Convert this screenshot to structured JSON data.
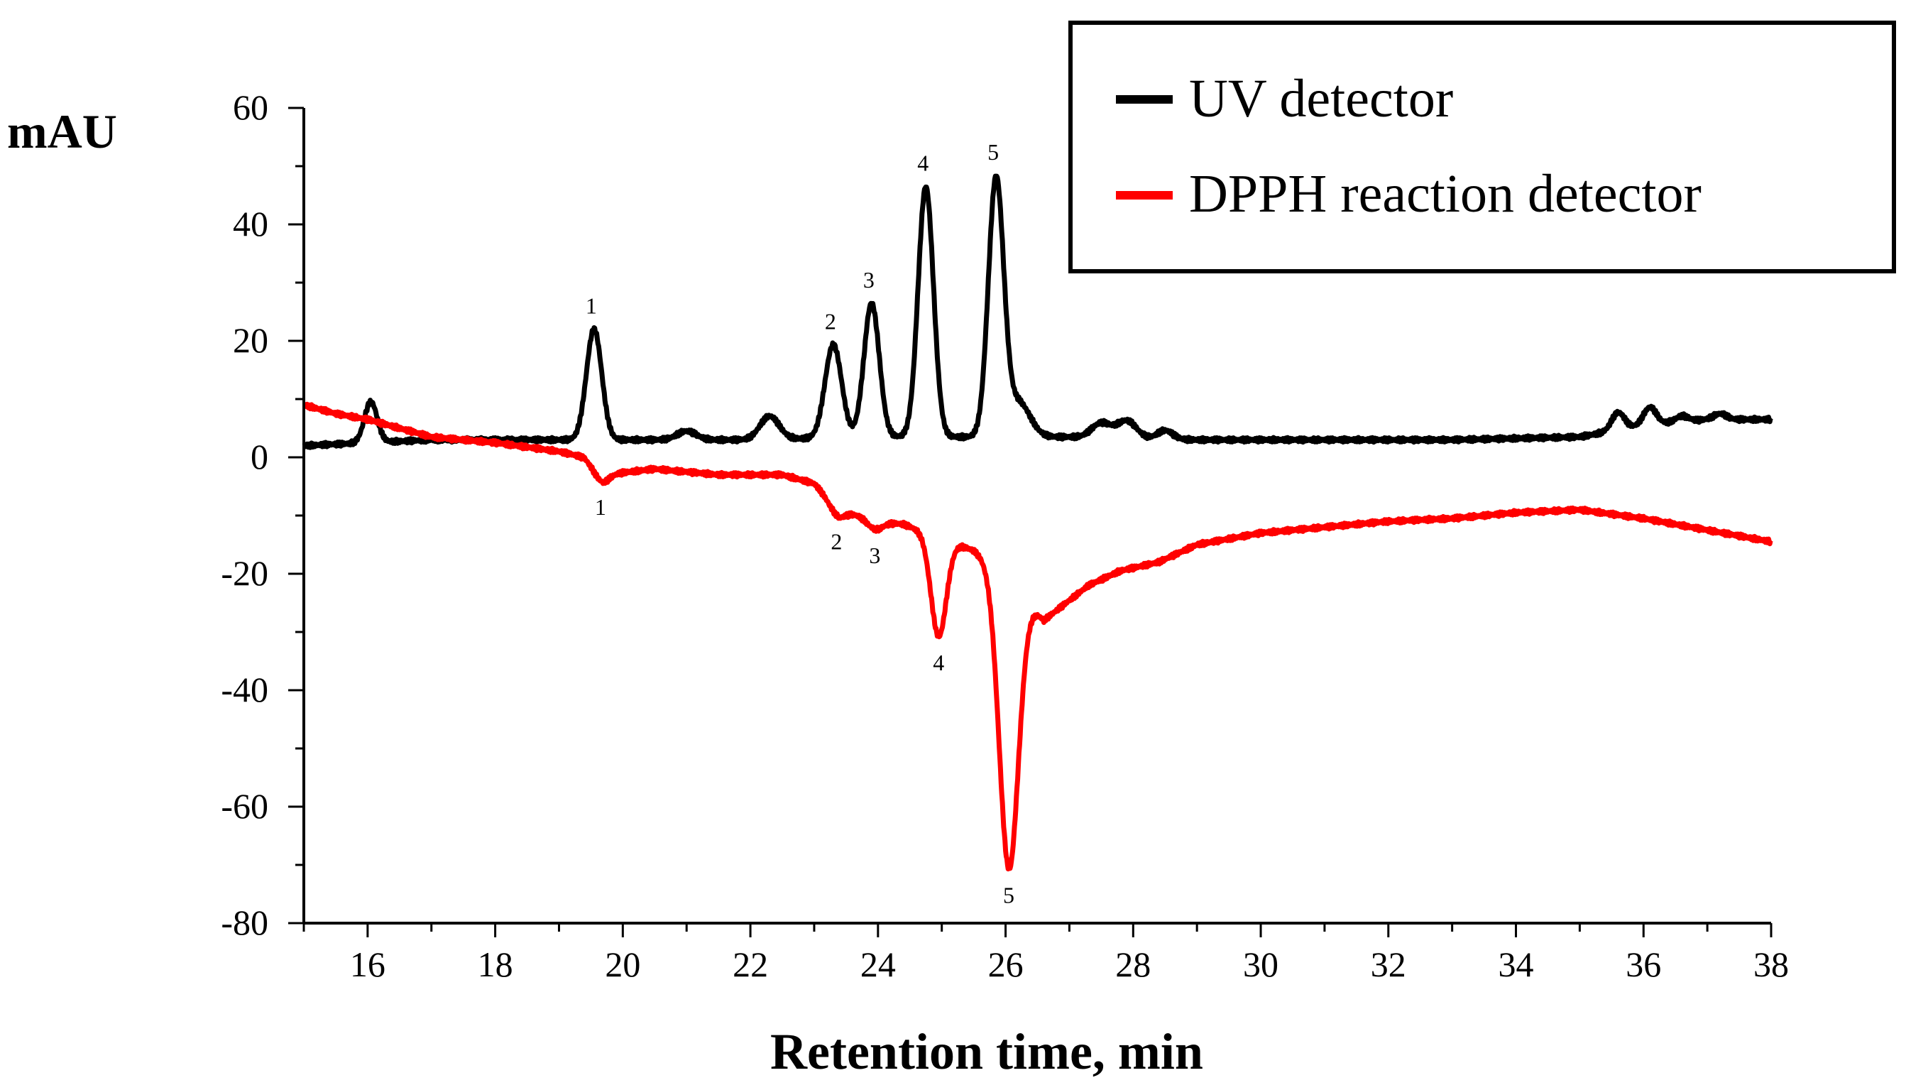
{
  "chart_data": {
    "type": "line",
    "xlabel": "Retention time, min",
    "ylabel": "mAU",
    "xlim": [
      15,
      38
    ],
    "ylim": [
      -80,
      60
    ],
    "x_ticks": [
      16,
      18,
      20,
      22,
      24,
      26,
      28,
      30,
      32,
      34,
      36,
      38
    ],
    "x_tick_labels": [
      "16",
      "18",
      "20",
      "22",
      "24",
      "26",
      "28",
      "30",
      "32",
      "34",
      "36",
      "38"
    ],
    "y_ticks": [
      60,
      40,
      20,
      0,
      -20,
      -40,
      -60,
      -80
    ],
    "y_tick_labels": [
      "60",
      "40",
      "20",
      "0",
      "-20",
      "-40",
      "-60",
      "-80"
    ],
    "grid": false,
    "legend_position": "top-right",
    "series": [
      {
        "name": "UV detector",
        "color": "#000000",
        "baseline": [
          [
            15,
            2
          ],
          [
            16,
            2.5
          ],
          [
            17,
            3
          ],
          [
            18,
            3
          ],
          [
            19,
            3
          ],
          [
            20,
            3
          ],
          [
            22,
            3
          ],
          [
            24,
            3.5
          ],
          [
            26,
            3.5
          ],
          [
            27,
            3.5
          ],
          [
            29,
            3
          ],
          [
            31,
            3
          ],
          [
            33,
            3
          ],
          [
            35,
            3.5
          ],
          [
            36,
            5.5
          ],
          [
            37,
            6.5
          ],
          [
            38,
            6.5
          ]
        ],
        "peaks": [
          {
            "label": "",
            "x": 16.05,
            "height": 7,
            "width": 0.1
          },
          {
            "label": "1",
            "x": 19.55,
            "height": 19,
            "width": 0.12
          },
          {
            "label": "",
            "x": 21.0,
            "height": 1.5,
            "width": 0.15
          },
          {
            "label": "",
            "x": 22.3,
            "height": 4,
            "width": 0.15
          },
          {
            "label": "2",
            "x": 23.3,
            "height": 16,
            "width": 0.13
          },
          {
            "label": "3",
            "x": 23.9,
            "height": 23,
            "width": 0.12
          },
          {
            "label": "4",
            "x": 24.75,
            "height": 43,
            "width": 0.12
          },
          {
            "label": "5",
            "x": 25.85,
            "height": 44,
            "width": 0.12
          },
          {
            "label": "",
            "x": 26.2,
            "height": 6,
            "width": 0.18
          },
          {
            "label": "",
            "x": 27.5,
            "height": 2.5,
            "width": 0.15
          },
          {
            "label": "",
            "x": 27.9,
            "height": 3,
            "width": 0.15
          },
          {
            "label": "",
            "x": 28.5,
            "height": 1.5,
            "width": 0.12
          },
          {
            "label": "",
            "x": 35.6,
            "height": 3,
            "width": 0.1
          },
          {
            "label": "",
            "x": 36.1,
            "height": 3,
            "width": 0.1
          },
          {
            "label": "",
            "x": 36.6,
            "height": 1,
            "width": 0.1
          },
          {
            "label": "",
            "x": 37.2,
            "height": 1,
            "width": 0.1
          }
        ]
      },
      {
        "name": "DPPH reaction detector",
        "color": "#ff0000",
        "baseline": [
          [
            15,
            9
          ],
          [
            15.5,
            7.5
          ],
          [
            16,
            6.5
          ],
          [
            16.5,
            5
          ],
          [
            17,
            3.5
          ],
          [
            18,
            2.5
          ],
          [
            19,
            1
          ],
          [
            19.4,
            0
          ],
          [
            19.7,
            -3
          ],
          [
            20.5,
            -2
          ],
          [
            21.5,
            -3
          ],
          [
            22.5,
            -3
          ],
          [
            23.0,
            -4.5
          ],
          [
            23.4,
            -9
          ],
          [
            24.0,
            -11
          ],
          [
            24.4,
            -11.5
          ],
          [
            25.5,
            -16
          ],
          [
            26.0,
            -20
          ],
          [
            26.6,
            -28
          ],
          [
            27.3,
            -22
          ],
          [
            27.8,
            -19.5
          ],
          [
            28.4,
            -18
          ],
          [
            29.0,
            -15
          ],
          [
            30,
            -13
          ],
          [
            31,
            -12
          ],
          [
            32,
            -11
          ],
          [
            33,
            -10.5
          ],
          [
            34,
            -9.5
          ],
          [
            35,
            -9
          ],
          [
            36,
            -10.5
          ],
          [
            37,
            -12.5
          ],
          [
            38,
            -14.5
          ]
        ],
        "peaks": [
          {
            "label": "1",
            "x": 19.65,
            "height": -1.5,
            "width": 0.12
          },
          {
            "label": "2",
            "x": 23.35,
            "height": -1.5,
            "width": 0.12
          },
          {
            "label": "3",
            "x": 23.95,
            "height": -1.5,
            "width": 0.12
          },
          {
            "label": "4",
            "x": 24.95,
            "height": -17,
            "width": 0.12
          },
          {
            "label": "5",
            "x": 26.05,
            "height": -50,
            "width": 0.15
          }
        ]
      }
    ]
  }
}
